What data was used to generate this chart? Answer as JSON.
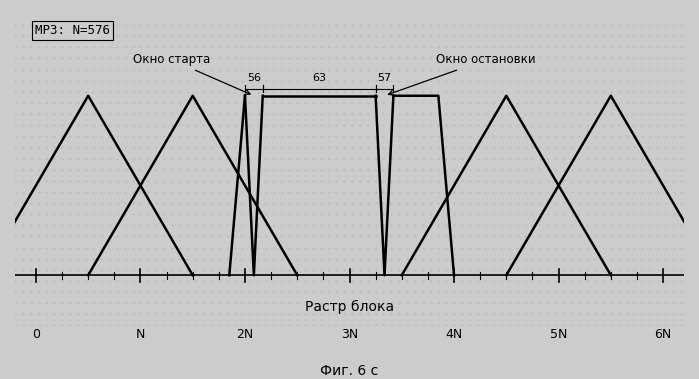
{
  "title_text": "МРЗ: N=576",
  "xlabel": "Растр блока",
  "caption": "Фиг. 6 с",
  "x_tick_labels": [
    "0",
    "N",
    "2N",
    "3N",
    "4N",
    "5N",
    "6N"
  ],
  "x_tick_positions": [
    0,
    1,
    2,
    3,
    4,
    5,
    6
  ],
  "annotation_56": "56",
  "annotation_63": "63",
  "annotation_57": "57",
  "label_starta": "Окно старта",
  "label_ostanovki": "Окно остановки",
  "background_color": "#cccccc",
  "line_color": "#000000",
  "text_color": "#000000",
  "dot_color": "#999999",
  "figsize": [
    6.99,
    3.79
  ],
  "dpi": 100,
  "xlim": [
    -0.2,
    6.2
  ],
  "ylim": [
    -0.28,
    1.45
  ]
}
